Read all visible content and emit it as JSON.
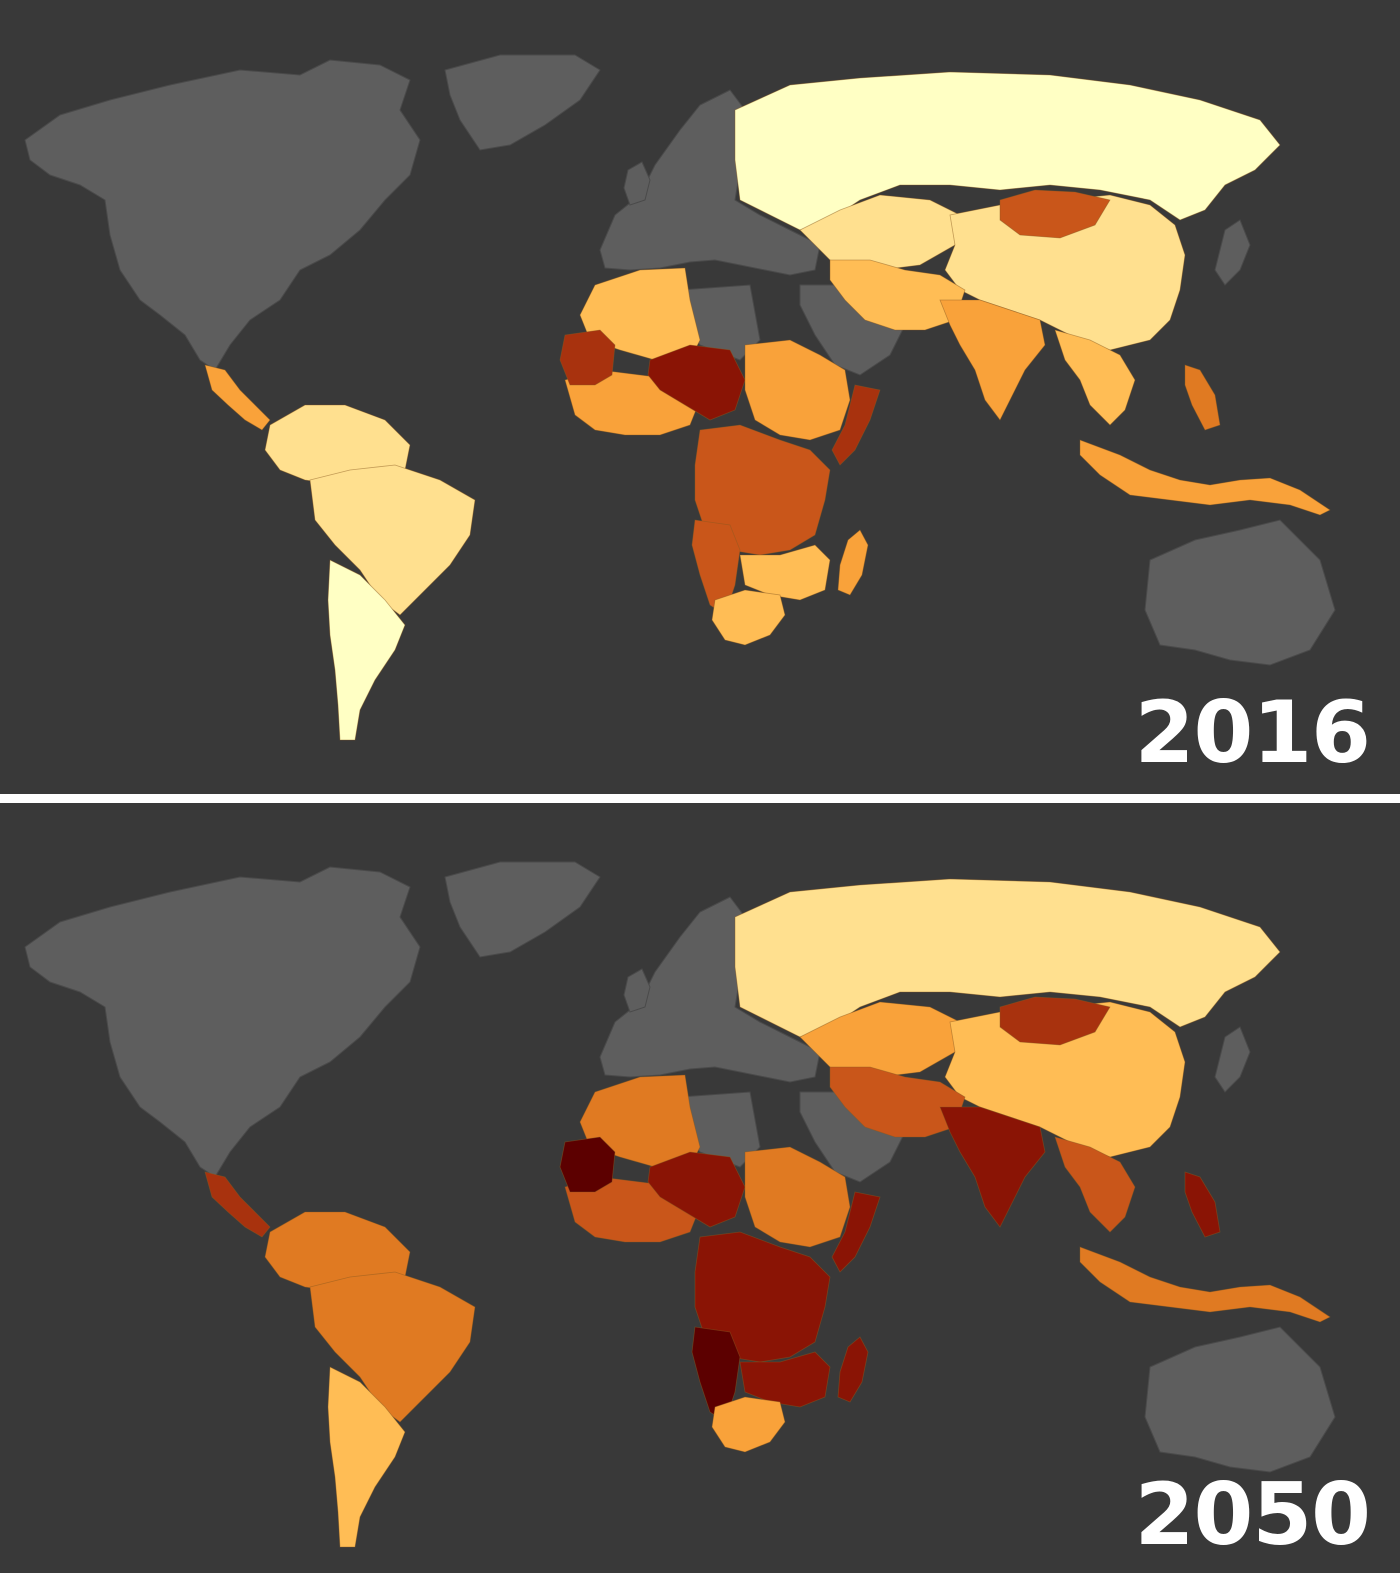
{
  "colors": {
    "background": "#393939",
    "no_data": "#5e5e5e",
    "divider": "#ffffff",
    "scale": [
      "#ffffc4",
      "#ffe08f",
      "#ffbd55",
      "#f9a23a",
      "#e07a22",
      "#c9561a",
      "#a8320e",
      "#8a1405",
      "#5c0000"
    ]
  },
  "maps": [
    {
      "year_label": "2016",
      "regions": [
        {
          "name": "russia",
          "level": 0
        },
        {
          "name": "kazakhstan",
          "level": 1
        },
        {
          "name": "china",
          "level": 1
        },
        {
          "name": "mongolia",
          "level": 5
        },
        {
          "name": "iran-pakistan",
          "level": 2
        },
        {
          "name": "india",
          "level": 3
        },
        {
          "name": "southeast-asia",
          "level": 2
        },
        {
          "name": "philippines",
          "level": 4
        },
        {
          "name": "indonesia",
          "level": 3
        },
        {
          "name": "north-africa-west",
          "level": 2
        },
        {
          "name": "west-africa",
          "level": 3
        },
        {
          "name": "sahel-west",
          "level": 6
        },
        {
          "name": "niger-chad",
          "level": 7
        },
        {
          "name": "sudan-ethiopia",
          "level": 3
        },
        {
          "name": "horn-somalia",
          "level": 6
        },
        {
          "name": "central-africa",
          "level": 5
        },
        {
          "name": "southern-africa",
          "level": 2
        },
        {
          "name": "angola-namibia",
          "level": 5
        },
        {
          "name": "madagascar",
          "level": 3
        },
        {
          "name": "south-africa",
          "level": 2
        },
        {
          "name": "central-america",
          "level": 3
        },
        {
          "name": "south-america-north",
          "level": 1
        },
        {
          "name": "brazil",
          "level": 1
        },
        {
          "name": "argentina",
          "level": 0
        }
      ]
    },
    {
      "year_label": "2050",
      "regions": [
        {
          "name": "russia",
          "level": 1
        },
        {
          "name": "kazakhstan",
          "level": 3
        },
        {
          "name": "china",
          "level": 2
        },
        {
          "name": "mongolia",
          "level": 6
        },
        {
          "name": "iran-pakistan",
          "level": 5
        },
        {
          "name": "india",
          "level": 7
        },
        {
          "name": "southeast-asia",
          "level": 5
        },
        {
          "name": "philippines",
          "level": 7
        },
        {
          "name": "indonesia",
          "level": 4
        },
        {
          "name": "north-africa-west",
          "level": 4
        },
        {
          "name": "west-africa",
          "level": 5
        },
        {
          "name": "sahel-west",
          "level": 8
        },
        {
          "name": "niger-chad",
          "level": 7
        },
        {
          "name": "sudan-ethiopia",
          "level": 4
        },
        {
          "name": "horn-somalia",
          "level": 7
        },
        {
          "name": "central-africa",
          "level": 7
        },
        {
          "name": "southern-africa",
          "level": 7
        },
        {
          "name": "angola-namibia",
          "level": 8
        },
        {
          "name": "madagascar",
          "level": 7
        },
        {
          "name": "south-africa",
          "level": 3
        },
        {
          "name": "central-america",
          "level": 6
        },
        {
          "name": "south-america-north",
          "level": 4
        },
        {
          "name": "brazil",
          "level": 4
        },
        {
          "name": "argentina",
          "level": 2
        }
      ]
    }
  ]
}
